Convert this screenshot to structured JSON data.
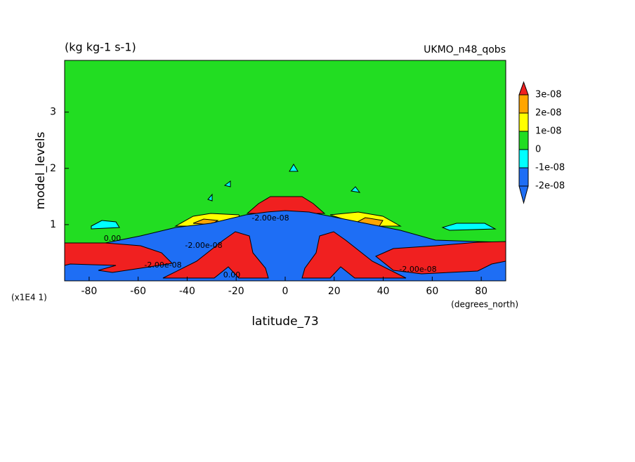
{
  "chart_data": {
    "type": "contour",
    "title": "(kg kg-1 s-1)",
    "subtitle": "UKMO_n48_qobs",
    "xlabel": "latitude_73",
    "ylabel": "model_levels",
    "xunits": "(degrees_north)",
    "yscale_note": "(x1E4 1)",
    "xlim": [
      -90,
      90
    ],
    "xticks": [
      -80,
      -60,
      -40,
      -20,
      0,
      20,
      40,
      60,
      80
    ],
    "ylim": [
      0,
      3.92
    ],
    "yticks": [
      1,
      2,
      3
    ],
    "levels": [
      {
        "value": -2e-08,
        "label": "-2e-08"
      },
      {
        "value": -1e-08,
        "label": "-1e-08"
      },
      0,
      {
        "value": 1e-08,
        "label": "1e-08"
      },
      {
        "value": 2e-08,
        "label": "2e-08"
      },
      {
        "value": 3e-08,
        "label": "3e-08"
      }
    ],
    "colors": [
      "#1e6ef5",
      "#1e6ef5",
      "#00ffff",
      "#22dd22",
      "#ffff00",
      "#ffa500",
      "#f02020"
    ],
    "contour_labels": [
      "0.00",
      "-2.00e-08",
      "0.00",
      "-2.00e-08",
      "-2.00e-08",
      "-2.00e-08"
    ]
  }
}
